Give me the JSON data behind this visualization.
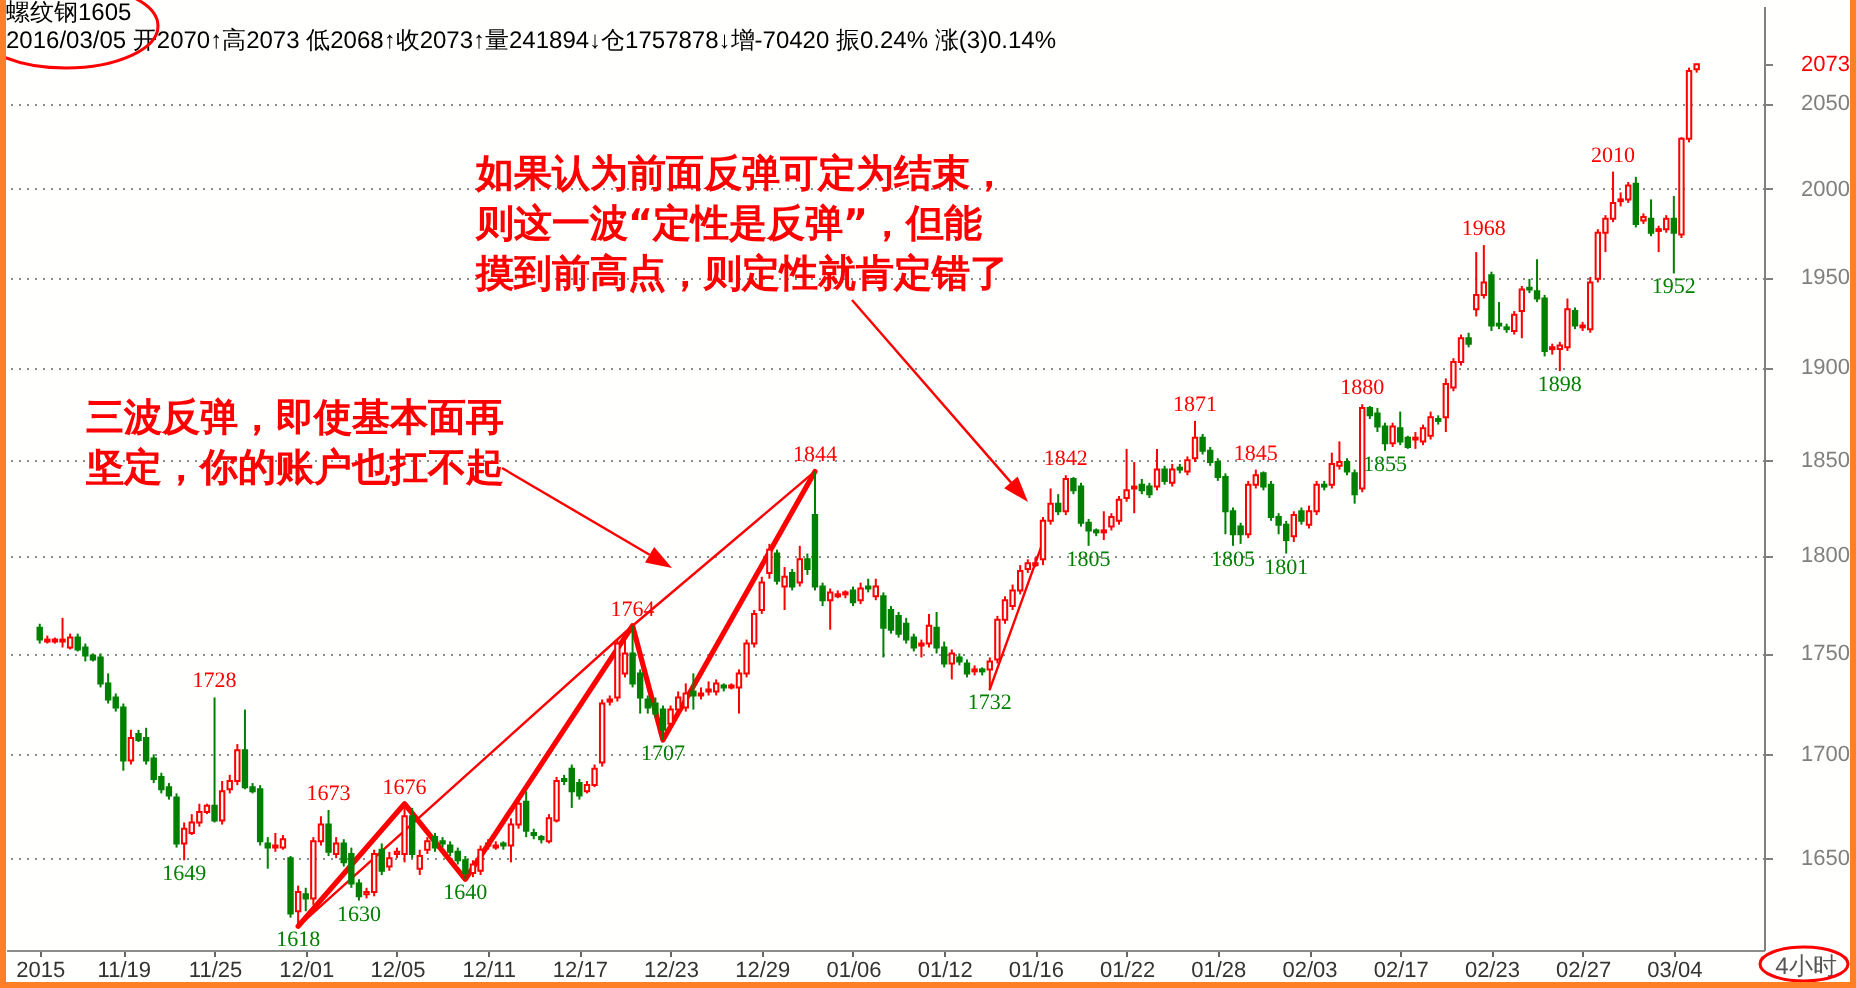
{
  "chart_data": {
    "type": "candlestick",
    "title": "螺纹钢1605",
    "subtitle": "2016/03/05 开2070↑高2073 低2068↑收2073↑量241894↓仓1757878↓增-70420 振0.24% 涨(3)0.14%",
    "categories": [
      "2015",
      null,
      null,
      null,
      null,
      null,
      null,
      null,
      null,
      null,
      null,
      "11/19",
      null,
      null,
      null,
      null,
      null,
      null,
      null,
      null,
      null,
      null,
      null,
      "11/25",
      null,
      null,
      null,
      null,
      null,
      null,
      null,
      null,
      null,
      null,
      null,
      "12/01",
      null,
      null,
      null,
      null,
      null,
      null,
      null,
      null,
      null,
      null,
      null,
      "12/05",
      null,
      null,
      null,
      null,
      null,
      null,
      null,
      null,
      null,
      null,
      null,
      "12/11",
      null,
      null,
      null,
      null,
      null,
      null,
      null,
      null,
      null,
      null,
      null,
      "12/17",
      null,
      null,
      null,
      null,
      null,
      null,
      null,
      null,
      null,
      null,
      null,
      "12/23",
      null,
      null,
      null,
      null,
      null,
      null,
      null,
      null,
      null,
      null,
      null,
      "12/29",
      null,
      null,
      null,
      null,
      null,
      null,
      null,
      null,
      null,
      null,
      null,
      "01/06",
      null,
      null,
      null,
      null,
      null,
      null,
      null,
      null,
      null,
      null,
      null,
      "01/12",
      null,
      null,
      null,
      null,
      null,
      null,
      null,
      null,
      null,
      null,
      null,
      "01/16",
      null,
      null,
      null,
      null,
      null,
      null,
      null,
      null,
      null,
      null,
      null,
      "01/22",
      null,
      null,
      null,
      null,
      null,
      null,
      null,
      null,
      null,
      null,
      null,
      "01/28",
      null,
      null,
      null,
      null,
      null,
      null,
      null,
      null,
      null,
      null,
      null,
      "02/03",
      null,
      null,
      null,
      null,
      null,
      null,
      null,
      null,
      null,
      null,
      null,
      "02/17",
      null,
      null,
      null,
      null,
      null,
      null,
      null,
      null,
      null,
      null,
      null,
      "02/23",
      null,
      null,
      null,
      null,
      null,
      null,
      null,
      null,
      null,
      null,
      null,
      "02/27",
      null,
      null,
      null,
      null,
      null,
      null,
      null,
      null,
      null,
      null,
      null,
      "03/04",
      null,
      null,
      null
    ],
    "ohlc": [
      [
        1763,
        1765,
        1755,
        1757
      ],
      [
        1756,
        1759,
        1755,
        1757
      ],
      [
        1756,
        1758,
        1755,
        1757
      ],
      [
        1756,
        1768,
        1753,
        1757
      ],
      [
        1753,
        1760,
        1752,
        1758
      ],
      [
        1758,
        1760,
        1751,
        1752
      ],
      [
        1753,
        1755,
        1746,
        1749
      ],
      [
        1749,
        1750,
        1746,
        1747
      ],
      [
        1748,
        1750,
        1733,
        1735
      ],
      [
        1735,
        1740,
        1725,
        1727
      ],
      [
        1728,
        1730,
        1721,
        1723
      ],
      [
        1723,
        1725,
        1692,
        1697
      ],
      [
        1697,
        1712,
        1695,
        1708
      ],
      [
        1710,
        1712,
        1706,
        1707
      ],
      [
        1708,
        1713,
        1695,
        1697
      ],
      [
        1698,
        1700,
        1686,
        1688
      ],
      [
        1689,
        1691,
        1681,
        1683
      ],
      [
        1684,
        1686,
        1678,
        1680
      ],
      [
        1679,
        1681,
        1655,
        1657
      ],
      [
        1657,
        1667,
        1649,
        1664
      ],
      [
        1662,
        1671,
        1661,
        1667
      ],
      [
        1667,
        1676,
        1665,
        1672
      ],
      [
        1672,
        1676,
        1671,
        1675
      ],
      [
        1675,
        1728,
        1667,
        1668
      ],
      [
        1668,
        1687,
        1666,
        1682
      ],
      [
        1683,
        1690,
        1681,
        1687
      ],
      [
        1687,
        1705,
        1685,
        1702
      ],
      [
        1702,
        1722,
        1683,
        1684
      ],
      [
        1684,
        1686,
        1681,
        1682
      ],
      [
        1683,
        1685,
        1656,
        1658
      ],
      [
        1657,
        1660,
        1645,
        1655
      ],
      [
        1655,
        1662,
        1653,
        1656
      ],
      [
        1655,
        1661,
        1654,
        1659
      ],
      [
        1650,
        1651,
        1622,
        1624
      ],
      [
        1625,
        1637,
        1618,
        1634
      ],
      [
        1633,
        1636,
        1625,
        1631
      ],
      [
        1631,
        1660,
        1628,
        1658
      ],
      [
        1658,
        1670,
        1656,
        1666
      ],
      [
        1666,
        1673,
        1651,
        1653
      ],
      [
        1652,
        1660,
        1650,
        1657
      ],
      [
        1657,
        1659,
        1646,
        1648
      ],
      [
        1652,
        1655,
        1636,
        1638
      ],
      [
        1638,
        1640,
        1630,
        1632
      ],
      [
        1633,
        1636,
        1631,
        1634
      ],
      [
        1634,
        1654,
        1632,
        1652
      ],
      [
        1654,
        1657,
        1642,
        1644
      ],
      [
        1646,
        1653,
        1644,
        1650
      ],
      [
        1652,
        1655,
        1650,
        1653
      ],
      [
        1652,
        1676,
        1648,
        1670
      ],
      [
        1670,
        1674,
        1650,
        1652
      ],
      [
        1645,
        1654,
        1642,
        1651
      ],
      [
        1654,
        1660,
        1652,
        1658
      ],
      [
        1660,
        1662,
        1653,
        1655
      ],
      [
        1658,
        1660,
        1655,
        1657
      ],
      [
        1656,
        1658,
        1651,
        1653
      ],
      [
        1653,
        1655,
        1647,
        1649
      ],
      [
        1649,
        1651,
        1640,
        1643
      ],
      [
        1643,
        1649,
        1641,
        1647
      ],
      [
        1644,
        1656,
        1642,
        1654
      ],
      [
        1656,
        1659,
        1654,
        1657
      ],
      [
        1655,
        1658,
        1654,
        1656
      ],
      [
        1657,
        1658,
        1654,
        1656
      ],
      [
        1656,
        1669,
        1648,
        1666
      ],
      [
        1666,
        1678,
        1664,
        1676
      ],
      [
        1677,
        1682,
        1660,
        1663
      ],
      [
        1662,
        1664,
        1659,
        1661
      ],
      [
        1660,
        1661,
        1657,
        1659
      ],
      [
        1658,
        1671,
        1657,
        1669
      ],
      [
        1668,
        1689,
        1667,
        1687
      ],
      [
        1688,
        1690,
        1685,
        1687
      ],
      [
        1693,
        1695,
        1674,
        1682
      ],
      [
        1686,
        1688,
        1678,
        1680
      ],
      [
        1682,
        1687,
        1681,
        1685
      ],
      [
        1685,
        1695,
        1684,
        1693
      ],
      [
        1696,
        1727,
        1694,
        1725
      ],
      [
        1726,
        1729,
        1724,
        1727
      ],
      [
        1728,
        1757,
        1726,
        1755
      ],
      [
        1740,
        1758,
        1738,
        1750
      ],
      [
        1750,
        1764,
        1733,
        1735
      ],
      [
        1740,
        1742,
        1720,
        1728
      ],
      [
        1727,
        1729,
        1720,
        1723
      ],
      [
        1725,
        1728,
        1718,
        1720
      ],
      [
        1722,
        1724,
        1707,
        1712
      ],
      [
        1715,
        1724,
        1713,
        1722
      ],
      [
        1722,
        1731,
        1720,
        1728
      ],
      [
        1723,
        1735,
        1721,
        1730
      ],
      [
        1731,
        1740,
        1722,
        1729
      ],
      [
        1729,
        1733,
        1727,
        1730
      ],
      [
        1731,
        1736,
        1729,
        1732
      ],
      [
        1731,
        1737,
        1729,
        1735
      ],
      [
        1734,
        1735,
        1731,
        1733
      ],
      [
        1733,
        1735,
        1732,
        1734
      ],
      [
        1733,
        1742,
        1720,
        1740
      ],
      [
        1740,
        1757,
        1738,
        1755
      ],
      [
        1755,
        1772,
        1753,
        1770
      ],
      [
        1772,
        1789,
        1770,
        1786
      ],
      [
        1791,
        1806,
        1788,
        1803
      ],
      [
        1801,
        1803,
        1785,
        1787
      ],
      [
        1784,
        1794,
        1772,
        1789
      ],
      [
        1791,
        1793,
        1782,
        1784
      ],
      [
        1786,
        1805,
        1784,
        1798
      ],
      [
        1798,
        1801,
        1790,
        1793
      ],
      [
        1821,
        1844,
        1782,
        1784
      ],
      [
        1784,
        1786,
        1774,
        1777
      ],
      [
        1777,
        1783,
        1762,
        1781
      ],
      [
        1779,
        1782,
        1778,
        1780
      ],
      [
        1780,
        1782,
        1778,
        1781
      ],
      [
        1782,
        1784,
        1774,
        1776
      ],
      [
        1777,
        1786,
        1775,
        1783
      ],
      [
        1784,
        1788,
        1781,
        1783
      ],
      [
        1779,
        1788,
        1777,
        1784
      ],
      [
        1779,
        1781,
        1748,
        1763
      ],
      [
        1772,
        1774,
        1760,
        1762
      ],
      [
        1769,
        1771,
        1758,
        1760
      ],
      [
        1765,
        1768,
        1755,
        1757
      ],
      [
        1758,
        1760,
        1751,
        1753
      ],
      [
        1754,
        1757,
        1748,
        1755
      ],
      [
        1755,
        1770,
        1753,
        1764
      ],
      [
        1763,
        1771,
        1750,
        1753
      ],
      [
        1753,
        1756,
        1743,
        1745
      ],
      [
        1745,
        1752,
        1737,
        1750
      ],
      [
        1748,
        1750,
        1744,
        1746
      ],
      [
        1745,
        1747,
        1738,
        1740
      ],
      [
        1741,
        1744,
        1739,
        1742
      ],
      [
        1742,
        1743,
        1739,
        1741
      ],
      [
        1742,
        1748,
        1732,
        1746
      ],
      [
        1747,
        1769,
        1745,
        1767
      ],
      [
        1767,
        1779,
        1765,
        1777
      ],
      [
        1774,
        1785,
        1772,
        1782
      ],
      [
        1782,
        1795,
        1780,
        1792
      ],
      [
        1793,
        1798,
        1791,
        1796
      ],
      [
        1795,
        1799,
        1794,
        1796
      ],
      [
        1798,
        1820,
        1795,
        1818
      ],
      [
        1818,
        1835,
        1816,
        1827
      ],
      [
        1827,
        1832,
        1821,
        1823
      ],
      [
        1823,
        1842,
        1821,
        1840
      ],
      [
        1840,
        1841,
        1832,
        1834
      ],
      [
        1836,
        1838,
        1815,
        1817
      ],
      [
        1817,
        1819,
        1805,
        1813
      ],
      [
        1813,
        1814,
        1810,
        1812
      ],
      [
        1812,
        1823,
        1808,
        1813
      ],
      [
        1815,
        1822,
        1813,
        1820
      ],
      [
        1818,
        1831,
        1816,
        1829
      ],
      [
        1830,
        1856,
        1828,
        1834
      ],
      [
        1835,
        1849,
        1822,
        1836
      ],
      [
        1837,
        1840,
        1832,
        1834
      ],
      [
        1836,
        1838,
        1830,
        1832
      ],
      [
        1836,
        1856,
        1834,
        1845
      ],
      [
        1845,
        1847,
        1837,
        1839
      ],
      [
        1838,
        1848,
        1836,
        1845
      ],
      [
        1846,
        1848,
        1843,
        1845
      ],
      [
        1844,
        1852,
        1842,
        1850
      ],
      [
        1851,
        1871,
        1849,
        1862
      ],
      [
        1862,
        1864,
        1853,
        1855
      ],
      [
        1855,
        1857,
        1847,
        1849
      ],
      [
        1849,
        1851,
        1839,
        1841
      ],
      [
        1841,
        1843,
        1811,
        1823
      ],
      [
        1823,
        1825,
        1805,
        1811
      ],
      [
        1815,
        1817,
        1806,
        1811
      ],
      [
        1811,
        1839,
        1809,
        1837
      ],
      [
        1837,
        1845,
        1835,
        1842
      ],
      [
        1843,
        1844,
        1834,
        1836
      ],
      [
        1837,
        1839,
        1818,
        1820
      ],
      [
        1820,
        1822,
        1811,
        1816
      ],
      [
        1816,
        1818,
        1801,
        1808
      ],
      [
        1810,
        1823,
        1807,
        1821
      ],
      [
        1823,
        1825,
        1816,
        1818
      ],
      [
        1816,
        1826,
        1814,
        1823
      ],
      [
        1823,
        1839,
        1821,
        1837
      ],
      [
        1837,
        1839,
        1834,
        1836
      ],
      [
        1837,
        1854,
        1835,
        1848
      ],
      [
        1847,
        1860,
        1845,
        1849
      ],
      [
        1849,
        1851,
        1842,
        1844
      ],
      [
        1843,
        1845,
        1827,
        1832
      ],
      [
        1835,
        1880,
        1833,
        1878
      ],
      [
        1878,
        1879,
        1872,
        1874
      ],
      [
        1875,
        1878,
        1865,
        1868
      ],
      [
        1868,
        1870,
        1855,
        1859
      ],
      [
        1859,
        1870,
        1857,
        1868
      ],
      [
        1867,
        1876,
        1858,
        1860
      ],
      [
        1862,
        1863,
        1856,
        1857
      ],
      [
        1861,
        1865,
        1856,
        1862
      ],
      [
        1860,
        1869,
        1858,
        1867
      ],
      [
        1863,
        1876,
        1861,
        1873
      ],
      [
        1872,
        1874,
        1869,
        1871
      ],
      [
        1873,
        1894,
        1865,
        1891
      ],
      [
        1889,
        1905,
        1887,
        1903
      ],
      [
        1903,
        1918,
        1901,
        1916
      ],
      [
        1916,
        1919,
        1911,
        1913
      ],
      [
        1932,
        1964,
        1928,
        1940
      ],
      [
        1940,
        1968,
        1938,
        1947
      ],
      [
        1951,
        1953,
        1920,
        1923
      ],
      [
        1924,
        1936,
        1921,
        1923
      ],
      [
        1922,
        1924,
        1919,
        1921
      ],
      [
        1920,
        1931,
        1918,
        1929
      ],
      [
        1931,
        1945,
        1916,
        1943
      ],
      [
        1944,
        1949,
        1941,
        1943
      ],
      [
        1942,
        1960,
        1936,
        1938
      ],
      [
        1938,
        1940,
        1906,
        1909
      ],
      [
        1910,
        1913,
        1907,
        1911
      ],
      [
        1910,
        1914,
        1898,
        1912
      ],
      [
        1911,
        1938,
        1909,
        1932
      ],
      [
        1931,
        1933,
        1921,
        1923
      ],
      [
        1922,
        1925,
        1920,
        1923
      ],
      [
        1921,
        1950,
        1919,
        1947
      ],
      [
        1949,
        1977,
        1947,
        1975
      ],
      [
        1975,
        1985,
        1964,
        1983
      ],
      [
        1983,
        2010,
        1981,
        1992
      ],
      [
        1993,
        1998,
        1990,
        1994
      ],
      [
        1994,
        2004,
        1992,
        2002
      ],
      [
        2003,
        2007,
        1978,
        1980
      ],
      [
        1982,
        1986,
        1980,
        1984
      ],
      [
        1983,
        1994,
        1973,
        1975
      ],
      [
        1976,
        1979,
        1964,
        1977
      ],
      [
        1977,
        1985,
        1975,
        1983
      ],
      [
        1983,
        1996,
        1952,
        1975
      ],
      [
        1974,
        2030,
        1972,
        2029
      ],
      [
        2029,
        2071,
        2027,
        2069
      ],
      [
        2070,
        2073,
        2068,
        2073
      ]
    ],
    "colors": [
      "#008000",
      "#ff0000",
      "#ff0000",
      "#ff0000",
      "#ff0000",
      "#008000",
      "#008000",
      "#008000",
      "#008000",
      "#008000",
      "#008000",
      "#008000",
      "#ff0000",
      "#008000",
      "#008000",
      "#008000",
      "#008000",
      "#008000",
      "#008000",
      "#ff0000",
      "#ff0000",
      "#ff0000",
      "#ff0000",
      "#008000",
      "#ff0000",
      "#ff0000",
      "#ff0000",
      "#008000",
      "#008000",
      "#008000",
      "#008000",
      "#ff0000",
      "#ff0000",
      "#008000",
      "#ff0000",
      "#008000",
      "#ff0000",
      "#ff0000",
      "#008000",
      "#ff0000",
      "#008000",
      "#008000",
      "#008000",
      "#ff0000",
      "#ff0000",
      "#008000",
      "#ff0000",
      "#ff0000",
      "#ff0000",
      "#008000",
      "#ff0000",
      "#ff0000",
      "#008000",
      "#008000",
      "#008000",
      "#008000",
      "#008000",
      "#ff0000",
      "#ff0000",
      "#ff0000",
      "#ff0000",
      "#008000",
      "#ff0000",
      "#ff0000",
      "#008000",
      "#008000",
      "#008000",
      "#ff0000",
      "#ff0000",
      "#008000",
      "#008000",
      "#008000",
      "#ff0000",
      "#ff0000",
      "#ff0000",
      "#ff0000",
      "#ff0000",
      "#ff0000",
      "#008000",
      "#008000",
      "#008000",
      "#008000",
      "#008000",
      "#ff0000",
      "#ff0000",
      "#ff0000",
      "#008000",
      "#ff0000",
      "#ff0000",
      "#ff0000",
      "#008000",
      "#ff0000",
      "#ff0000",
      "#ff0000",
      "#ff0000",
      "#ff0000",
      "#ff0000",
      "#008000",
      "#ff0000",
      "#008000",
      "#ff0000",
      "#008000",
      "#008000",
      "#008000",
      "#ff0000",
      "#ff0000",
      "#ff0000",
      "#008000",
      "#ff0000",
      "#008000",
      "#ff0000",
      "#008000",
      "#008000",
      "#008000",
      "#008000",
      "#008000",
      "#ff0000",
      "#ff0000",
      "#008000",
      "#008000",
      "#ff0000",
      "#008000",
      "#008000",
      "#ff0000",
      "#008000",
      "#ff0000",
      "#ff0000",
      "#ff0000",
      "#ff0000",
      "#ff0000",
      "#ff0000",
      "#ff0000",
      "#ff0000",
      "#ff0000",
      "#008000",
      "#ff0000",
      "#008000",
      "#008000",
      "#008000",
      "#008000",
      "#ff0000",
      "#ff0000",
      "#ff0000",
      "#ff0000",
      "#ff0000",
      "#008000",
      "#008000",
      "#ff0000",
      "#008000",
      "#ff0000",
      "#008000",
      "#ff0000",
      "#ff0000",
      "#008000",
      "#008000",
      "#008000",
      "#008000",
      "#008000",
      "#008000",
      "#ff0000",
      "#ff0000",
      "#008000",
      "#008000",
      "#008000",
      "#008000",
      "#ff0000",
      "#008000",
      "#ff0000",
      "#ff0000",
      "#008000",
      "#ff0000",
      "#ff0000",
      "#008000",
      "#008000",
      "#ff0000",
      "#008000",
      "#008000",
      "#008000",
      "#ff0000",
      "#008000",
      "#008000",
      "#ff0000",
      "#ff0000",
      "#ff0000",
      "#008000",
      "#ff0000",
      "#ff0000",
      "#ff0000",
      "#008000",
      "#ff0000",
      "#ff0000",
      "#008000",
      "#008000",
      "#008000",
      "#ff0000",
      "#ff0000",
      "#008000",
      "#008000",
      "#008000",
      "#ff0000",
      "#ff0000",
      "#ff0000",
      "#008000",
      "#ff0000",
      "#ff0000",
      "#ff0000",
      "#ff0000",
      "#ff0000",
      "#ff0000",
      "#ff0000",
      "#008000",
      "#ff0000",
      "#008000",
      "#ff0000",
      "#ff0000",
      "#008000",
      "#ff0000",
      "#ff0000",
      "#ff0000"
    ],
    "series": [
      {
        "type": "line",
        "color": "#ff0000",
        "values": [
          null,
          null,
          null,
          null,
          null,
          null,
          null,
          null,
          null,
          null,
          null,
          null,
          null,
          null,
          null,
          null,
          null,
          null,
          null,
          null,
          null,
          null,
          null,
          null,
          null,
          null,
          null,
          null,
          null,
          null,
          null,
          null,
          null,
          null,
          1618,
          null,
          null,
          null,
          null,
          null,
          null,
          null,
          null,
          null,
          null,
          null,
          null,
          null,
          1676,
          null,
          null,
          null,
          null,
          null,
          null,
          null,
          1640,
          null,
          null,
          null,
          null,
          null,
          null,
          null,
          null,
          null,
          null,
          null,
          null,
          null,
          null,
          null,
          null,
          null,
          null,
          null,
          null,
          null,
          1764,
          null,
          null,
          null,
          1707,
          null,
          null,
          null,
          null,
          null,
          null,
          null,
          null,
          null,
          null,
          null,
          null,
          null,
          null,
          null,
          null,
          null,
          null,
          null,
          1844,
          null,
          null,
          null,
          null,
          null,
          null,
          null,
          null,
          null,
          null,
          null,
          null,
          null,
          null,
          null,
          null,
          null,
          null,
          null,
          null,
          null,
          null,
          null,
          null,
          null,
          null,
          null,
          null,
          null,
          null,
          null,
          null,
          null,
          null,
          null,
          null,
          null,
          null,
          null,
          null,
          null,
          null,
          null,
          null,
          null,
          null,
          null,
          null,
          null,
          null,
          null,
          null,
          null,
          null,
          null,
          null,
          null,
          null,
          null,
          null,
          null,
          null,
          null,
          null,
          null,
          null,
          null,
          null,
          null,
          null,
          null,
          null,
          null,
          null,
          null,
          null,
          null,
          null,
          null,
          null,
          null,
          null,
          null,
          null,
          null,
          null,
          null,
          null,
          null,
          null,
          null,
          null,
          null,
          null,
          null,
          null,
          null,
          null,
          null,
          null,
          null,
          null,
          null,
          null,
          null,
          null,
          null,
          null,
          null,
          null,
          null,
          null,
          null,
          null,
          null,
          null
        ]
      },
      {
        "type": "line",
        "color": "#ff0000",
        "values": [
          null,
          null,
          null,
          null,
          null,
          null,
          null,
          null,
          null,
          null,
          null,
          null,
          null,
          null,
          null,
          null,
          null,
          null,
          null,
          null,
          null,
          null,
          null,
          null,
          null,
          null,
          null,
          null,
          null,
          null,
          null,
          null,
          null,
          null,
          1618,
          null,
          null,
          null,
          null,
          null,
          null,
          null,
          null,
          null,
          null,
          null,
          null,
          null,
          null,
          null,
          null,
          null,
          null,
          null,
          null,
          null,
          null,
          null,
          null,
          null,
          null,
          null,
          null,
          null,
          null,
          null,
          null,
          null,
          null,
          null,
          null,
          null,
          null,
          null,
          null,
          null,
          null,
          null,
          1764,
          null,
          null,
          null,
          null,
          null,
          null,
          null,
          null,
          null,
          null,
          null,
          null,
          null,
          null,
          null,
          null,
          null,
          null,
          null,
          null,
          null,
          null,
          null,
          1844,
          null,
          null,
          null,
          null,
          null,
          null,
          null,
          null,
          null,
          null,
          null,
          null,
          null,
          null,
          null,
          null,
          null,
          null,
          null,
          null,
          null,
          null,
          null,
          null,
          null,
          null,
          null,
          null,
          null,
          null,
          null,
          null,
          null,
          null,
          null,
          null,
          null,
          null,
          null,
          null,
          null,
          null,
          null,
          null,
          null,
          null,
          null,
          null,
          null,
          null,
          null,
          null,
          null,
          null,
          null,
          null,
          null,
          null,
          null,
          null,
          null,
          null,
          null,
          null,
          null,
          null,
          null,
          null,
          null,
          null,
          null,
          null,
          null,
          null,
          null,
          null,
          null,
          null,
          null,
          null,
          null,
          null,
          null,
          null,
          null,
          null,
          null,
          null,
          null,
          null,
          null,
          null,
          null,
          null,
          null,
          null,
          null,
          null,
          null,
          null,
          null,
          null,
          null,
          null,
          null,
          null,
          null,
          null,
          null,
          null,
          null,
          null,
          null,
          null,
          null,
          null
        ]
      },
      {
        "type": "line",
        "color": "#ff0000",
        "values": [
          null,
          null,
          null,
          null,
          null,
          null,
          null,
          null,
          null,
          null,
          null,
          null,
          null,
          null,
          null,
          null,
          null,
          null,
          null,
          null,
          null,
          null,
          null,
          null,
          null,
          null,
          null,
          null,
          null,
          null,
          null,
          null,
          null,
          null,
          null,
          null,
          null,
          null,
          null,
          null,
          null,
          null,
          null,
          null,
          null,
          null,
          null,
          null,
          null,
          null,
          null,
          null,
          null,
          null,
          null,
          null,
          null,
          null,
          null,
          null,
          null,
          null,
          null,
          null,
          null,
          null,
          null,
          null,
          null,
          null,
          null,
          null,
          null,
          null,
          null,
          null,
          null,
          null,
          null,
          null,
          null,
          null,
          null,
          null,
          null,
          null,
          null,
          null,
          null,
          null,
          null,
          null,
          null,
          null,
          null,
          null,
          null,
          null,
          null,
          null,
          null,
          null,
          null,
          null,
          null,
          null,
          null,
          null,
          null,
          null,
          null,
          null,
          null,
          null,
          null,
          null,
          null,
          null,
          null,
          null,
          null,
          null,
          null,
          null,
          null,
          1732,
          null,
          null,
          null,
          null,
          null,
          null,
          1807,
          null,
          null,
          null,
          null,
          null,
          null,
          null,
          null,
          null,
          null,
          null,
          null,
          null,
          null,
          null,
          null,
          null,
          null,
          null,
          null,
          null,
          null,
          null,
          null,
          null,
          null,
          null,
          null,
          null,
          null,
          null,
          null,
          null,
          null,
          null,
          null,
          null,
          null,
          null,
          null,
          null,
          null,
          null,
          null,
          null,
          null,
          null,
          null,
          null,
          null,
          null,
          null,
          null,
          null,
          null,
          null,
          null,
          null,
          null,
          null,
          null,
          null,
          null,
          null,
          null,
          null,
          null,
          null,
          null,
          null,
          null,
          null,
          null,
          null,
          null,
          null,
          null,
          null,
          null,
          null,
          null,
          null,
          null,
          null,
          null,
          null
        ]
      }
    ],
    "ylim": [
      1607,
      2108
    ],
    "yticks": [
      1650,
      1700,
      1750,
      1800,
      1850,
      1900,
      1950,
      2000,
      2050,
      2073
    ],
    "log": true,
    "grid": "y",
    "annotations": [
      {
        "text": "1649",
        "y": 1649
      },
      {
        "text": "1728",
        "y": 1728
      },
      {
        "text": "1618",
        "y": 1618
      },
      {
        "text": "1673",
        "y": 1673
      },
      {
        "text": "1630",
        "y": 1630
      },
      {
        "text": "1676",
        "y": 1676
      },
      {
        "text": "1640",
        "y": 1640
      },
      {
        "text": "1764",
        "y": 1764
      },
      {
        "text": "1707",
        "y": 1707
      },
      {
        "text": "1844",
        "y": 1844
      },
      {
        "text": "1732",
        "y": 1732
      },
      {
        "text": "1842",
        "y": 1842
      },
      {
        "text": "1805",
        "y": 1805
      },
      {
        "text": "1871",
        "y": 1871
      },
      {
        "text": "1805",
        "y": 1805
      },
      {
        "text": "1845",
        "y": 1845
      },
      {
        "text": "1801",
        "y": 1801
      },
      {
        "text": "1880",
        "y": 1880
      },
      {
        "text": "1855",
        "y": 1855
      },
      {
        "text": "1968",
        "y": 1968
      },
      {
        "text": "1898",
        "y": 1898
      },
      {
        "text": "2010",
        "y": 2010
      },
      {
        "text": "1952",
        "y": 1952
      },
      "如果认为前面反弹可定为结束，则这一波“定性是反弹”，但能摸到前高点，则定性就肯定错了",
      "三波反弹，即使基本面再坚定，你的账户也扛不起",
      "4小时"
    ]
  }
}
